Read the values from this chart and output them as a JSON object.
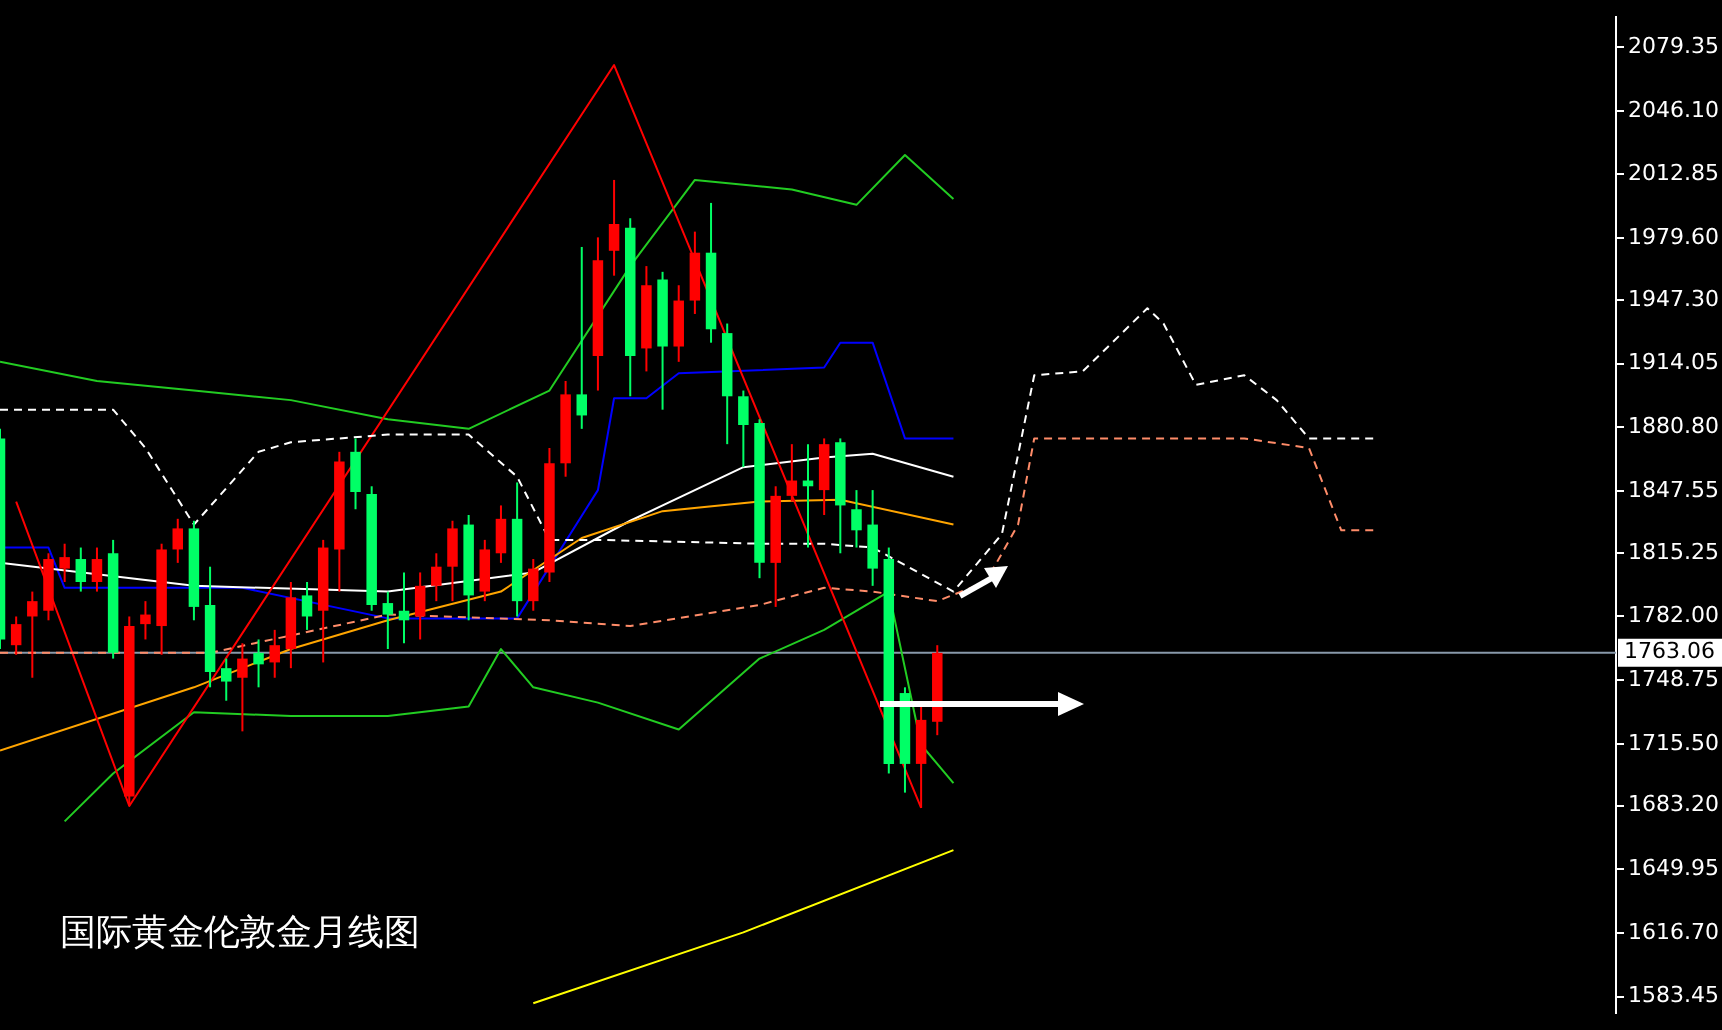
{
  "chart_data": {
    "type": "candlestick",
    "title": "国际黄金伦敦金月线图",
    "categories": [
      null,
      null,
      null,
      null,
      null,
      null,
      null,
      null,
      null,
      null,
      null,
      null,
      null,
      null,
      null,
      null,
      null,
      null,
      null,
      null,
      null,
      null,
      null,
      null,
      null,
      null,
      null,
      null,
      null,
      null,
      null,
      null,
      null,
      null,
      null,
      null,
      null,
      null,
      null,
      null,
      null,
      null,
      null,
      null,
      null,
      null,
      null,
      null,
      null,
      null,
      null,
      null,
      null,
      null,
      null,
      null,
      null,
      null,
      null,
      null,
      null,
      null,
      null,
      null,
      null,
      null,
      null,
      null,
      null,
      null,
      null,
      null,
      null,
      null,
      null,
      null,
      null,
      null,
      null,
      null,
      null,
      null,
      null,
      null,
      null,
      null,
      null,
      null,
      null,
      null,
      null,
      null,
      null,
      null,
      null,
      null,
      null,
      null,
      null,
      null,
      null
    ],
    "ohlc": [
      [
        1875,
        1880,
        1765,
        1770
      ],
      [
        1767,
        1782,
        1762,
        1778
      ],
      [
        1782,
        1795,
        1750,
        1790
      ],
      [
        1785,
        1815,
        1780,
        1812
      ],
      [
        1807,
        1820,
        1800,
        1813
      ],
      [
        1812,
        1818,
        1795,
        1800
      ],
      [
        1800,
        1818,
        1795,
        1812
      ],
      [
        1815,
        1822,
        1760,
        1763
      ],
      [
        1688,
        1782,
        1683,
        1777
      ],
      [
        1778,
        1790,
        1770,
        1783
      ],
      [
        1777,
        1820,
        1762,
        1817
      ],
      [
        1817,
        1833,
        1810,
        1828
      ],
      [
        1828,
        1832,
        1780,
        1787
      ],
      [
        1788,
        1808,
        1745,
        1753
      ],
      [
        1755,
        1760,
        1738,
        1748
      ],
      [
        1750,
        1768,
        1722,
        1760
      ],
      [
        1763,
        1770,
        1745,
        1757
      ],
      [
        1758,
        1775,
        1750,
        1767
      ],
      [
        1765,
        1800,
        1755,
        1792
      ],
      [
        1793,
        1800,
        1775,
        1782
      ],
      [
        1785,
        1822,
        1758,
        1818
      ],
      [
        1817,
        1868,
        1795,
        1863
      ],
      [
        1868,
        1875,
        1838,
        1847
      ],
      [
        1846,
        1850,
        1785,
        1788
      ],
      [
        1789,
        1795,
        1765,
        1783
      ],
      [
        1785,
        1805,
        1768,
        1780
      ],
      [
        1782,
        1805,
        1770,
        1798
      ],
      [
        1798,
        1815,
        1790,
        1808
      ],
      [
        1808,
        1832,
        1790,
        1828
      ],
      [
        1830,
        1835,
        1780,
        1793
      ],
      [
        1795,
        1822,
        1790,
        1817
      ],
      [
        1815,
        1840,
        1810,
        1833
      ],
      [
        1833,
        1852,
        1782,
        1790
      ],
      [
        1790,
        1812,
        1785,
        1807
      ],
      [
        1805,
        1870,
        1800,
        1862
      ],
      [
        1862,
        1905,
        1855,
        1898
      ],
      [
        1898,
        1975,
        1880,
        1887
      ],
      [
        1918,
        1980,
        1900,
        1968
      ],
      [
        1973,
        2010,
        1960,
        1987
      ],
      [
        1985,
        1990,
        1897,
        1918
      ],
      [
        1922,
        1965,
        1910,
        1955
      ],
      [
        1958,
        1962,
        1890,
        1923
      ],
      [
        1923,
        1955,
        1915,
        1947
      ],
      [
        1947,
        1983,
        1940,
        1972
      ],
      [
        1972,
        1998,
        1925,
        1932
      ],
      [
        1930,
        1935,
        1872,
        1897
      ],
      [
        1897,
        1900,
        1860,
        1882
      ],
      [
        1883,
        1885,
        1802,
        1810
      ],
      [
        1810,
        1850,
        1787,
        1845
      ],
      [
        1845,
        1872,
        1842,
        1853
      ],
      [
        1853,
        1872,
        1818,
        1850
      ],
      [
        1848,
        1875,
        1835,
        1872
      ],
      [
        1873,
        1875,
        1815,
        1840
      ],
      [
        1838,
        1848,
        1818,
        1827
      ],
      [
        1830,
        1848,
        1798,
        1807
      ],
      [
        1812,
        1818,
        1700,
        1705
      ],
      [
        1742,
        1745,
        1690,
        1705
      ],
      [
        1705,
        1737,
        1682,
        1728
      ],
      [
        1727,
        1767,
        1720,
        1763
      ],
      null,
      null,
      null,
      null,
      null,
      null,
      null,
      null,
      null,
      null,
      null,
      null,
      null,
      null,
      null,
      null,
      null,
      null,
      null,
      null,
      null,
      null,
      null,
      null,
      null,
      null,
      null,
      null,
      null,
      null,
      null,
      null,
      null,
      null,
      null,
      null,
      null,
      null,
      null,
      null,
      null,
      null
    ],
    "colors": [
      "#00ff66",
      "#ff0000",
      "#ff0000",
      "#ff0000",
      "#ff0000",
      "#00ff66",
      "#ff0000",
      "#00ff66",
      "#ff0000",
      "#ff0000",
      "#ff0000",
      "#ff0000",
      "#00ff66",
      "#00ff66",
      "#00ff66",
      "#ff0000",
      "#00ff66",
      "#ff0000",
      "#ff0000",
      "#00ff66",
      "#ff0000",
      "#ff0000",
      "#00ff66",
      "#00ff66",
      "#00ff66",
      "#00ff66",
      "#ff0000",
      "#ff0000",
      "#ff0000",
      "#00ff66",
      "#ff0000",
      "#ff0000",
      "#00ff66",
      "#ff0000",
      "#ff0000",
      "#ff0000",
      "#00ff66",
      "#ff0000",
      "#ff0000",
      "#00ff66",
      "#ff0000",
      "#00ff66",
      "#ff0000",
      "#ff0000",
      "#00ff66",
      "#00ff66",
      "#00ff66",
      "#00ff66",
      "#ff0000",
      "#ff0000",
      "#00ff66",
      "#ff0000",
      "#00ff66",
      "#00ff66",
      "#00ff66",
      "#00ff66",
      "#00ff66",
      "#ff0000",
      "#ff0000",
      null,
      null,
      null,
      null,
      null,
      null,
      null,
      null,
      null,
      null,
      null,
      null,
      null,
      null,
      null,
      null,
      null,
      null,
      null,
      null,
      null,
      null,
      null,
      null,
      null,
      null,
      null,
      null,
      null,
      null,
      null,
      null,
      null,
      null,
      null,
      null,
      null,
      null,
      null,
      null,
      null,
      null
    ],
    "series": [
      {
        "type": "line",
        "color": "#ffffff",
        "line_style": "dashed",
        "values": [
          1890,
          null,
          null,
          null,
          null,
          null,
          null,
          1890,
          null,
          1870,
          null,
          null,
          1830,
          null,
          null,
          null,
          1868,
          null,
          1873,
          null,
          null,
          null,
          null,
          null,
          1877,
          null,
          null,
          null,
          null,
          1877,
          null,
          null,
          1855,
          null,
          1822,
          null,
          null,
          1822,
          null,
          null,
          null,
          null,
          null,
          null,
          null,
          null,
          null,
          1820,
          null,
          null,
          null,
          1820,
          null,
          null,
          1818,
          null,
          null,
          null,
          null,
          1795,
          null,
          null,
          1825,
          null,
          1908,
          null,
          null,
          1910,
          null,
          null,
          null,
          1943,
          1935,
          null,
          1903,
          null,
          null,
          1908,
          null,
          1895,
          null,
          1875,
          null,
          null,
          null,
          1875,
          null,
          null,
          null,
          null,
          null,
          null,
          null,
          null,
          null,
          null,
          null,
          null,
          null,
          null,
          null
        ]
      },
      {
        "type": "line",
        "color": "#ff8c69",
        "line_style": "dashed",
        "values": [
          1763,
          null,
          null,
          null,
          null,
          null,
          null,
          null,
          null,
          null,
          null,
          null,
          null,
          1763,
          null,
          null,
          null,
          null,
          null,
          null,
          null,
          null,
          null,
          null,
          1783,
          null,
          null,
          null,
          null,
          null,
          null,
          null,
          null,
          null,
          1780,
          null,
          null,
          null,
          null,
          1777,
          null,
          null,
          null,
          null,
          null,
          null,
          null,
          1788,
          null,
          null,
          null,
          1797,
          null,
          null,
          1795,
          null,
          null,
          null,
          1790,
          null,
          null,
          1800,
          null,
          1830,
          1875,
          null,
          null,
          null,
          null,
          1875,
          null,
          null,
          null,
          null,
          null,
          null,
          null,
          1875,
          null,
          null,
          null,
          1870,
          null,
          1827,
          null,
          1827,
          null,
          null,
          null,
          null,
          null,
          null,
          null,
          null,
          null,
          null,
          null,
          null,
          null,
          null,
          null
        ]
      },
      {
        "type": "line",
        "color": "#ff0000",
        "values": [
          null,
          1842,
          null,
          null,
          null,
          null,
          null,
          null,
          1683,
          null,
          null,
          null,
          null,
          null,
          null,
          null,
          null,
          null,
          null,
          null,
          null,
          null,
          null,
          null,
          null,
          null,
          null,
          null,
          null,
          null,
          null,
          null,
          null,
          null,
          null,
          null,
          null,
          null,
          2070,
          null,
          null,
          null,
          null,
          null,
          null,
          null,
          null,
          null,
          null,
          null,
          null,
          null,
          null,
          null,
          null,
          null,
          null,
          1682,
          null,
          null,
          null,
          null,
          null,
          null,
          null,
          null,
          null,
          null,
          null,
          null,
          null,
          null,
          null,
          null,
          null,
          null,
          null,
          null,
          null,
          null,
          null,
          null,
          null,
          null,
          null,
          null,
          null,
          null,
          null,
          null,
          null,
          null,
          null,
          null,
          null,
          null,
          null,
          null,
          null,
          null,
          null
        ]
      },
      {
        "type": "line",
        "color": "#22cc22",
        "values": [
          1915,
          null,
          null,
          null,
          null,
          null,
          1905,
          null,
          null,
          null,
          null,
          null,
          1900,
          null,
          null,
          null,
          null,
          null,
          1895,
          null,
          null,
          null,
          null,
          null,
          1885,
          null,
          null,
          null,
          null,
          1880,
          null,
          null,
          null,
          null,
          1900,
          null,
          null,
          null,
          null,
          1965,
          null,
          null,
          null,
          2010,
          null,
          null,
          null,
          null,
          null,
          2005,
          null,
          null,
          null,
          1997,
          null,
          null,
          2023,
          null,
          null,
          2000,
          null,
          null,
          null,
          null,
          null,
          null,
          null,
          null,
          null,
          null,
          null,
          null,
          null,
          null,
          null,
          null,
          null,
          null,
          null,
          null,
          null,
          null,
          null,
          null,
          null,
          null,
          null,
          null,
          null,
          null,
          null,
          null,
          null,
          null,
          null,
          null,
          null,
          null,
          null,
          null,
          null
        ]
      },
      {
        "type": "line",
        "color": "#22cc22",
        "values": [
          null,
          null,
          null,
          null,
          1675,
          null,
          null,
          1700,
          null,
          null,
          null,
          null,
          1732,
          null,
          null,
          null,
          null,
          null,
          1730,
          null,
          null,
          null,
          null,
          null,
          1730,
          null,
          null,
          null,
          null,
          1735,
          null,
          1765,
          null,
          1745,
          null,
          null,
          null,
          1737,
          null,
          null,
          null,
          null,
          1723,
          null,
          null,
          null,
          null,
          1760,
          null,
          null,
          null,
          1775,
          null,
          null,
          null,
          1795,
          null,
          1715,
          null,
          1695,
          null,
          null,
          null,
          null,
          null,
          null,
          null,
          null,
          null,
          null,
          null,
          null,
          null,
          null,
          null,
          null,
          null,
          null,
          null,
          null,
          null,
          null,
          null,
          null,
          null,
          null,
          null,
          null,
          null,
          null,
          null,
          null,
          null,
          null,
          null,
          null,
          null,
          null,
          null,
          null,
          null
        ]
      },
      {
        "type": "line",
        "color": "#ffa500",
        "values": [
          1712,
          null,
          null,
          null,
          null,
          null,
          null,
          null,
          null,
          null,
          null,
          null,
          1745,
          null,
          null,
          null,
          null,
          null,
          1765,
          null,
          null,
          null,
          null,
          null,
          1780,
          null,
          null,
          null,
          null,
          null,
          null,
          1795,
          null,
          null,
          null,
          null,
          1823,
          null,
          null,
          null,
          null,
          1837,
          null,
          null,
          null,
          null,
          null,
          1842,
          null,
          null,
          null,
          null,
          1843,
          null,
          null,
          null,
          null,
          null,
          null,
          1830,
          null,
          null,
          null,
          null,
          null,
          null,
          null,
          null,
          null,
          null,
          null,
          null,
          null,
          null,
          null,
          null,
          null,
          null,
          null,
          null,
          null,
          null,
          null,
          null,
          null,
          null,
          null,
          null,
          null,
          null,
          null,
          null,
          null,
          null,
          null,
          null,
          null,
          null,
          null,
          null,
          null
        ]
      },
      {
        "type": "line",
        "color": "#ffff00",
        "values": [
          null,
          null,
          null,
          null,
          null,
          null,
          null,
          null,
          null,
          null,
          null,
          null,
          null,
          null,
          null,
          null,
          null,
          null,
          null,
          null,
          null,
          null,
          null,
          null,
          null,
          null,
          null,
          null,
          null,
          null,
          null,
          null,
          null,
          1580,
          null,
          null,
          null,
          null,
          null,
          null,
          null,
          null,
          null,
          null,
          null,
          null,
          1617,
          null,
          null,
          null,
          null,
          null,
          null,
          null,
          null,
          null,
          null,
          null,
          null,
          1660,
          null,
          null,
          null,
          null,
          null,
          null,
          null,
          null,
          null,
          null,
          null,
          null,
          null,
          null,
          null,
          null,
          null,
          null,
          null,
          null,
          null,
          null,
          null,
          null,
          null,
          null,
          null,
          null,
          null,
          null,
          null,
          null,
          null,
          null,
          null,
          null,
          null,
          null,
          null,
          null,
          null
        ]
      },
      {
        "type": "line",
        "color": "#ffffff",
        "values": [
          1810,
          null,
          null,
          null,
          null,
          null,
          null,
          null,
          null,
          null,
          null,
          null,
          1798,
          null,
          null,
          null,
          null,
          null,
          null,
          null,
          null,
          null,
          null,
          null,
          1795,
          null,
          null,
          null,
          null,
          null,
          null,
          null,
          null,
          1805,
          null,
          null,
          null,
          null,
          null,
          1832,
          null,
          null,
          null,
          null,
          null,
          null,
          1860,
          null,
          null,
          null,
          null,
          1865,
          null,
          null,
          1867,
          null,
          null,
          null,
          null,
          1855,
          null,
          null,
          null,
          null,
          null,
          null,
          null,
          null,
          null,
          null,
          null,
          null,
          null,
          null,
          null,
          null,
          null,
          null,
          null,
          null,
          null,
          null,
          null,
          null,
          null,
          null,
          null,
          null,
          null,
          null,
          null,
          null,
          null,
          null,
          null,
          null,
          null,
          null,
          null,
          null,
          null
        ]
      },
      {
        "type": "line",
        "color": "#0000ff",
        "values": [
          1818,
          null,
          null,
          1818,
          1797,
          null,
          null,
          null,
          null,
          null,
          null,
          null,
          null,
          null,
          null,
          1797,
          null,
          null,
          null,
          null,
          null,
          null,
          null,
          null,
          1781,
          null,
          null,
          null,
          null,
          null,
          null,
          null,
          1781,
          null,
          null,
          null,
          null,
          1848,
          1896,
          null,
          1896,
          null,
          1909,
          null,
          null,
          null,
          null,
          null,
          null,
          null,
          null,
          1912,
          1925,
          null,
          1925,
          null,
          1875,
          null,
          null,
          1875,
          null,
          null,
          null,
          null,
          null,
          null,
          null,
          null,
          null,
          null,
          null,
          null,
          null,
          null,
          null,
          null,
          null,
          null,
          null,
          null,
          null,
          null,
          null,
          null,
          null,
          null,
          null,
          null,
          null,
          null,
          null,
          null,
          null,
          null,
          null,
          null,
          null,
          null,
          null,
          null,
          null
        ]
      }
    ],
    "ylim": [
      1575,
      2095
    ],
    "yticks": [
      {
        "value": 2079.35,
        "label": "2079.35"
      },
      {
        "value": 2046.1,
        "label": "2046.10"
      },
      {
        "value": 2012.85,
        "label": "2012.85"
      },
      {
        "value": 1979.6,
        "label": "1979.60"
      },
      {
        "value": 1947.3,
        "label": "1947.30"
      },
      {
        "value": 1914.05,
        "label": "1914.05"
      },
      {
        "value": 1880.8,
        "label": "1880.80"
      },
      {
        "value": 1847.55,
        "label": "1847.55"
      },
      {
        "value": 1815.25,
        "label": "1815.25"
      },
      {
        "value": 1782,
        "label": "1782.00"
      },
      {
        "value": 1748.75,
        "label": "1748.75"
      },
      {
        "value": 1715.5,
        "label": "1715.50"
      },
      {
        "value": 1683.2,
        "label": "1683.20"
      },
      {
        "value": 1649.95,
        "label": "1649.95"
      },
      {
        "value": 1616.7,
        "label": "1616.70"
      },
      {
        "value": 1583.45,
        "label": "1583.45"
      }
    ],
    "ref_lines": [
      {
        "axis": "y",
        "value": 1763.06,
        "label": "1763.06",
        "color": "#8899aa"
      }
    ],
    "tick_labels": "y",
    "marker": "none"
  }
}
